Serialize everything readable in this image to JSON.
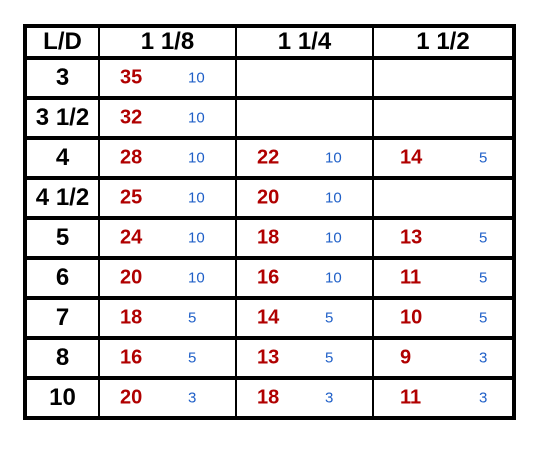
{
  "table": {
    "headers": [
      "L/D",
      "1 1/8",
      "1 1/4",
      "1 1/2"
    ],
    "rows": [
      {
        "ld": "3",
        "cells": [
          {
            "value": "35",
            "sub": "10"
          },
          null,
          null
        ]
      },
      {
        "ld": "3 1/2",
        "cells": [
          {
            "value": "32",
            "sub": "10"
          },
          null,
          null
        ]
      },
      {
        "ld": "4",
        "cells": [
          {
            "value": "28",
            "sub": "10"
          },
          {
            "value": "22",
            "sub": "10"
          },
          {
            "value": "14",
            "sub": "5"
          }
        ]
      },
      {
        "ld": "4 1/2",
        "cells": [
          {
            "value": "25",
            "sub": "10"
          },
          {
            "value": "20",
            "sub": "10"
          },
          null
        ]
      },
      {
        "ld": "5",
        "cells": [
          {
            "value": "24",
            "sub": "10"
          },
          {
            "value": "18",
            "sub": "10"
          },
          {
            "value": "13",
            "sub": "5"
          }
        ]
      },
      {
        "ld": "6",
        "cells": [
          {
            "value": "20",
            "sub": "10"
          },
          {
            "value": "16",
            "sub": "10"
          },
          {
            "value": "11",
            "sub": "5"
          }
        ]
      },
      {
        "ld": "7",
        "cells": [
          {
            "value": "18",
            "sub": "5"
          },
          {
            "value": "14",
            "sub": "5"
          },
          {
            "value": "10",
            "sub": "5"
          }
        ]
      },
      {
        "ld": "8",
        "cells": [
          {
            "value": "16",
            "sub": "5"
          },
          {
            "value": "13",
            "sub": "5"
          },
          {
            "value": "9",
            "sub": "3"
          }
        ]
      },
      {
        "ld": "10",
        "cells": [
          {
            "value": "20",
            "sub": "3"
          },
          {
            "value": "18",
            "sub": "3"
          },
          {
            "value": "11",
            "sub": "3"
          }
        ]
      }
    ]
  },
  "colors": {
    "value": "#b00000",
    "sub": "#2060c8",
    "grid": "#000000"
  }
}
